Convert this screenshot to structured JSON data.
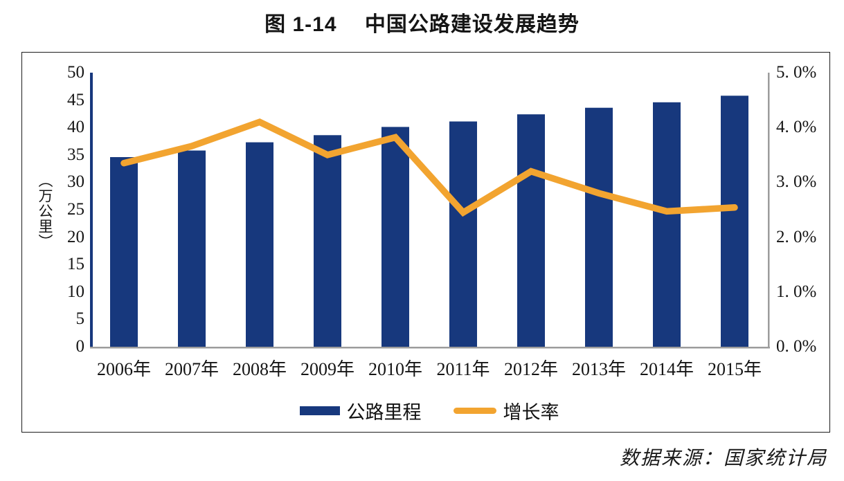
{
  "title": "图 1-14　 中国公路建设发展趋势",
  "source": "数据来源：国家统计局",
  "colors": {
    "bar_navy": "#17387d",
    "line_orange": "#f2a430",
    "axis_gray": "#9c9c9c",
    "frame_black": "#1c1c1c"
  },
  "chart_data": {
    "type": "bar",
    "title": "图 1-14　中国公路建设发展趋势",
    "categories": [
      "2006年",
      "2007年",
      "2008年",
      "2009年",
      "2010年",
      "2011年",
      "2012年",
      "2013年",
      "2014年",
      "2015年"
    ],
    "series": [
      {
        "name": "公路里程",
        "type": "bar",
        "axis": "left",
        "unit": "万公里",
        "color": "#17387d",
        "values": [
          34.6,
          35.8,
          37.3,
          38.6,
          40.1,
          41.1,
          42.4,
          43.6,
          44.6,
          45.8
        ]
      },
      {
        "name": "增长率",
        "type": "line",
        "axis": "right",
        "unit": "%",
        "color": "#f2a430",
        "values": [
          3.35,
          3.66,
          4.1,
          3.5,
          3.82,
          2.45,
          3.2,
          2.8,
          2.47,
          2.54
        ]
      }
    ],
    "left_axis": {
      "title": "（万公里）",
      "min": 0,
      "max": 50,
      "tick_step": 5,
      "tick_labels": [
        "0",
        "5",
        "10",
        "15",
        "20",
        "25",
        "30",
        "35",
        "40",
        "45",
        "50"
      ]
    },
    "right_axis": {
      "min": 0,
      "max": 5,
      "tick_step": 1,
      "tick_labels": [
        "0. 0%",
        "1. 0%",
        "2. 0%",
        "3. 0%",
        "4. 0%",
        "5. 0%"
      ]
    },
    "legend": {
      "position": "bottom-center",
      "entries": [
        "公路里程",
        "增长率"
      ]
    },
    "grid": false
  }
}
